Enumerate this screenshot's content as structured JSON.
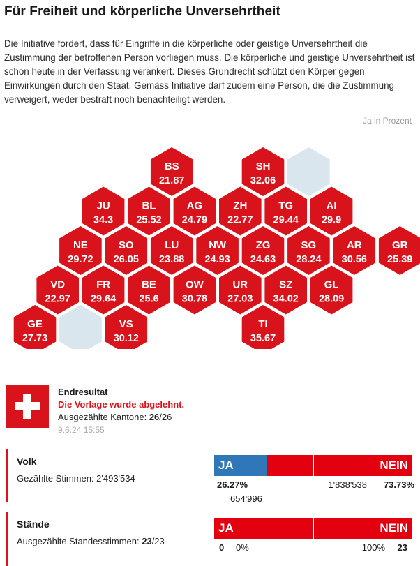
{
  "title": "Für Freiheit und körperliche Unversehrtheit",
  "intro": "Die Initiative fordert, dass für Eingriffe in die körperliche oder geistige Unversehrtheit die Zustimmung der betroffenen Person vorliegen muss. Die körperliche und geistige Unversehrtheit ist schon heute in der Verfassung verankert. Dieses Grundrecht schützt den Körper gegen Einwirkungen durch den Staat. Gemäss Initiative darf zudem eine Person, die die Zustimmung verweigert, weder bestraft noch benachteiligt werden.",
  "unit_label": "Ja in Prozent",
  "colors": {
    "rejected": "#d9131c",
    "empty_cell": "#d9e6ee",
    "ja": "#2f77b8",
    "nein": "#e3000f"
  },
  "chart_data": {
    "type": "heatmap",
    "value_label": "Ja in Prozent",
    "cantons": [
      {
        "code": "BS",
        "value": 21.87,
        "col": 6,
        "row": 0
      },
      {
        "code": "SH",
        "value": 32.06,
        "col": 10,
        "row": 0
      },
      {
        "code": "JU",
        "value": 34.3,
        "col": 3,
        "row": 1
      },
      {
        "code": "BL",
        "value": 25.52,
        "col": 5,
        "row": 1
      },
      {
        "code": "AG",
        "value": 24.79,
        "col": 7,
        "row": 1
      },
      {
        "code": "ZH",
        "value": 22.77,
        "col": 9,
        "row": 1
      },
      {
        "code": "TG",
        "value": 29.44,
        "col": 11,
        "row": 1
      },
      {
        "code": "AI",
        "value": 29.9,
        "col": 13,
        "row": 1
      },
      {
        "code": "NE",
        "value": 29.72,
        "col": 2,
        "row": 2
      },
      {
        "code": "SO",
        "value": 26.05,
        "col": 4,
        "row": 2
      },
      {
        "code": "LU",
        "value": 23.88,
        "col": 6,
        "row": 2
      },
      {
        "code": "NW",
        "value": 24.93,
        "col": 8,
        "row": 2
      },
      {
        "code": "ZG",
        "value": 24.63,
        "col": 10,
        "row": 2
      },
      {
        "code": "SG",
        "value": 28.24,
        "col": 12,
        "row": 2
      },
      {
        "code": "AR",
        "value": 30.56,
        "col": 14,
        "row": 2
      },
      {
        "code": "GR",
        "value": 25.39,
        "col": 16,
        "row": 2
      },
      {
        "code": "VD",
        "value": 22.97,
        "col": 1,
        "row": 3
      },
      {
        "code": "FR",
        "value": 29.64,
        "col": 3,
        "row": 3
      },
      {
        "code": "BE",
        "value": 25.6,
        "col": 5,
        "row": 3
      },
      {
        "code": "OW",
        "value": 30.78,
        "col": 7,
        "row": 3
      },
      {
        "code": "UR",
        "value": 27.03,
        "col": 9,
        "row": 3
      },
      {
        "code": "SZ",
        "value": 34.02,
        "col": 11,
        "row": 3
      },
      {
        "code": "GL",
        "value": 28.09,
        "col": 13,
        "row": 3
      },
      {
        "code": "GE",
        "value": 27.73,
        "col": 0,
        "row": 4
      },
      {
        "code": "VS",
        "value": 30.12,
        "col": 4,
        "row": 4
      },
      {
        "code": "TI",
        "value": 35.67,
        "col": 10,
        "row": 4
      }
    ],
    "empty_cells": [
      {
        "col": 12,
        "row": 0
      },
      {
        "col": 2,
        "row": 4
      }
    ]
  },
  "result": {
    "heading": "Endresultat",
    "status": "Die Vorlage wurde abgelehnt.",
    "cantons_label": "Ausgezählte Kantone: ",
    "cantons_counted": "26",
    "cantons_total": "/26",
    "date": "9.6.24 15:55"
  },
  "volk": {
    "name": "Volk",
    "sub_label": "Gezählte Stimmen: 2'493'534",
    "ja_label": "JA",
    "nein_label": "NEIN",
    "ja_share": 0.2627,
    "ja_percent": "26.27%",
    "ja_votes": "654'996",
    "nein_votes": "1'838'538",
    "nein_percent": "73.73%"
  },
  "staende": {
    "name": "Stände",
    "sub_label": "Ausgezählte Standesstimmen: ",
    "sub_counted": "23",
    "sub_total": "/23",
    "ja_label": "JA",
    "nein_label": "NEIN",
    "ja_share": 0,
    "ja_count": "0",
    "ja_percent": "0%",
    "nein_percent": "100%",
    "nein_count": "23"
  }
}
